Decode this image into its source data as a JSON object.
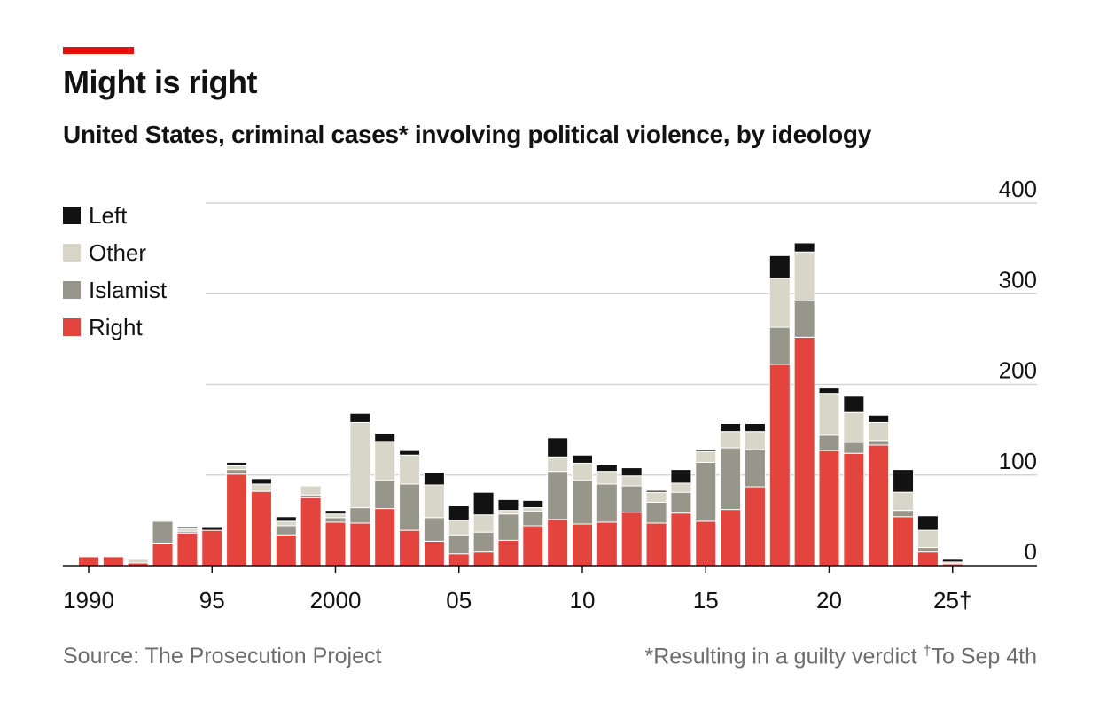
{
  "header": {
    "title": "Might is right",
    "subtitle": "United States, criminal cases* involving political violence, by ideology"
  },
  "legend": [
    {
      "label": "Left",
      "color": "#121212"
    },
    {
      "label": "Other",
      "color": "#d8d6c8"
    },
    {
      "label": "Islamist",
      "color": "#97968a"
    },
    {
      "label": "Right",
      "color": "#e3443d"
    }
  ],
  "footer": {
    "source": "Source: The Prosecution Project",
    "note": "*Resulting in a guilty verdict",
    "note_mark": "†",
    "note2": "To Sep 4th"
  },
  "chart_data": {
    "type": "bar",
    "stacked": true,
    "x": [
      1990,
      1991,
      1992,
      1993,
      1994,
      1995,
      1996,
      1997,
      1998,
      1999,
      2000,
      2001,
      2002,
      2003,
      2004,
      2005,
      2006,
      2007,
      2008,
      2009,
      2010,
      2011,
      2012,
      2013,
      2014,
      2015,
      2016,
      2017,
      2018,
      2019,
      2020,
      2021,
      2022,
      2023,
      2024,
      2025
    ],
    "x_tick_labels": [
      {
        "x": 1990,
        "label": "1990"
      },
      {
        "x": 1995,
        "label": "95"
      },
      {
        "x": 2000,
        "label": "2000"
      },
      {
        "x": 2005,
        "label": "05"
      },
      {
        "x": 2010,
        "label": "10"
      },
      {
        "x": 2015,
        "label": "15"
      },
      {
        "x": 2020,
        "label": "20"
      },
      {
        "x": 2025,
        "label": "25†"
      }
    ],
    "ylim": [
      0,
      400
    ],
    "yticks": [
      0,
      100,
      200,
      300,
      400
    ],
    "grid": true,
    "y_axis_position": "right",
    "legend_position": "top-left",
    "series": [
      {
        "name": "Right",
        "color": "#e3443d",
        "values": [
          10,
          10,
          3,
          25,
          36,
          39,
          101,
          82,
          34,
          75,
          48,
          47,
          63,
          39,
          27,
          13,
          15,
          28,
          44,
          51,
          46,
          48,
          59,
          47,
          58,
          49,
          62,
          87,
          222,
          252,
          127,
          124,
          133,
          54,
          15,
          2
        ]
      },
      {
        "name": "Islamist",
        "color": "#97968a",
        "values": [
          0,
          0,
          0,
          24,
          2,
          0,
          5,
          0,
          10,
          3,
          5,
          17,
          31,
          51,
          26,
          21,
          22,
          29,
          16,
          53,
          48,
          42,
          29,
          23,
          23,
          65,
          68,
          41,
          41,
          40,
          17,
          12,
          5,
          7,
          5,
          0
        ]
      },
      {
        "name": "Other",
        "color": "#d8d6c8",
        "values": [
          1,
          1,
          4,
          0,
          3,
          0,
          4,
          8,
          5,
          10,
          4,
          94,
          43,
          32,
          36,
          16,
          19,
          4,
          4,
          16,
          19,
          14,
          11,
          11,
          10,
          12,
          18,
          20,
          54,
          54,
          46,
          33,
          20,
          20,
          19,
          2
        ]
      },
      {
        "name": "Left",
        "color": "#121212",
        "values": [
          1,
          1,
          0,
          1,
          2,
          4,
          4,
          6,
          5,
          0,
          4,
          10,
          9,
          5,
          14,
          16,
          25,
          12,
          8,
          21,
          9,
          7,
          9,
          2,
          15,
          2,
          9,
          9,
          25,
          10,
          6,
          18,
          8,
          25,
          16,
          3
        ]
      }
    ]
  }
}
